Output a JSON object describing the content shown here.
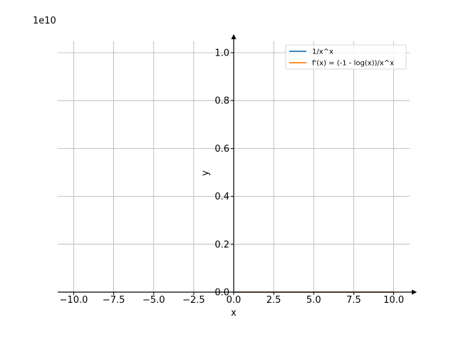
{
  "chart_data": {
    "type": "line",
    "title": "",
    "xlabel": "x",
    "ylabel": "y",
    "y_offset_text": "1e10",
    "xlim": [
      -11,
      11
    ],
    "ylim": [
      0,
      1.0
    ],
    "x_ticks": [
      -10.0,
      -7.5,
      -5.0,
      -2.5,
      0.0,
      2.5,
      5.0,
      7.5,
      10.0
    ],
    "x_tick_labels": [
      "−10.0",
      "−7.5",
      "−5.0",
      "−2.5",
      "0.0",
      "2.5",
      "5.0",
      "7.5",
      "10.0"
    ],
    "y_ticks": [
      0.0,
      0.2,
      0.4,
      0.6,
      0.8,
      1.0
    ],
    "y_tick_labels": [
      "0.0",
      "0.2",
      "0.4",
      "0.6",
      "0.8",
      "1.0"
    ],
    "grid": true,
    "legend_position": "upper right",
    "series": [
      {
        "name": "1/x^x",
        "color": "#1f77b4",
        "x": [
          0.0,
          0.5,
          1.0,
          1.5,
          2.0,
          2.5,
          3.0,
          4.0,
          5.0,
          6.0,
          7.5,
          10.0
        ],
        "values": [
          0,
          0,
          0,
          0,
          0,
          0,
          0,
          0,
          0,
          0,
          0,
          0
        ]
      },
      {
        "name": "f'(x) = (-1 - log(x))/x^x",
        "color": "#ff7f0e",
        "x": [
          0.0,
          0.5,
          1.0,
          1.5,
          2.0,
          2.5,
          3.0,
          4.0,
          5.0,
          6.0,
          7.5,
          10.0
        ],
        "values": [
          0,
          0,
          0,
          0,
          0,
          0,
          0,
          0,
          0,
          0,
          0,
          0
        ]
      }
    ]
  }
}
